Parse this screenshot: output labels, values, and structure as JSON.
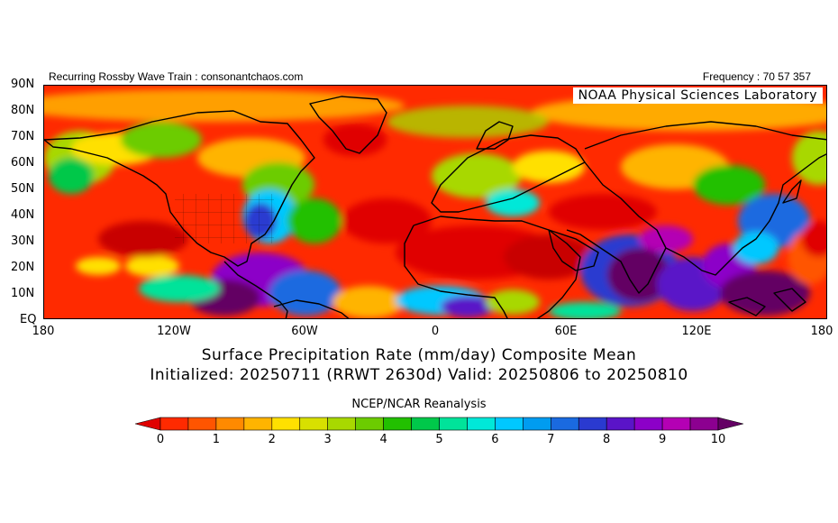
{
  "header": {
    "left_text": "Recurring Rossby Wave Train : consonantchaos.com",
    "right_text": "Frequency : 70 57 357"
  },
  "map": {
    "credit": "NOAA Physical Sciences Laboratory",
    "lat_labels": [
      "90N",
      "80N",
      "70N",
      "60N",
      "50N",
      "40N",
      "30N",
      "20N",
      "10N",
      "EQ"
    ],
    "lon_labels": [
      "180",
      "120W",
      "60W",
      "0",
      "60E",
      "120E",
      "180"
    ]
  },
  "title": {
    "line1": "Surface Precipitation Rate (mm/day) Composite Mean",
    "line2": "Initialized: 20250711 (RRWT 2630d) Valid: 20250806 to 20250810"
  },
  "source": "NCEP/NCAR Reanalysis",
  "colorbar": {
    "labels": [
      "0",
      "1",
      "2",
      "3",
      "4",
      "5",
      "6",
      "7",
      "8",
      "9",
      "10"
    ],
    "colors": [
      "#e00000",
      "#ff2a00",
      "#ff5500",
      "#ff8a00",
      "#ffb400",
      "#ffe000",
      "#d8e000",
      "#a8d800",
      "#6ccc00",
      "#22c000",
      "#00c84a",
      "#00e39a",
      "#00e8d8",
      "#00c8ff",
      "#009cf0",
      "#1a6ae0",
      "#2a3ad0",
      "#5a14c8",
      "#8c00c8",
      "#b400b4",
      "#8c0090",
      "#640064"
    ]
  }
}
